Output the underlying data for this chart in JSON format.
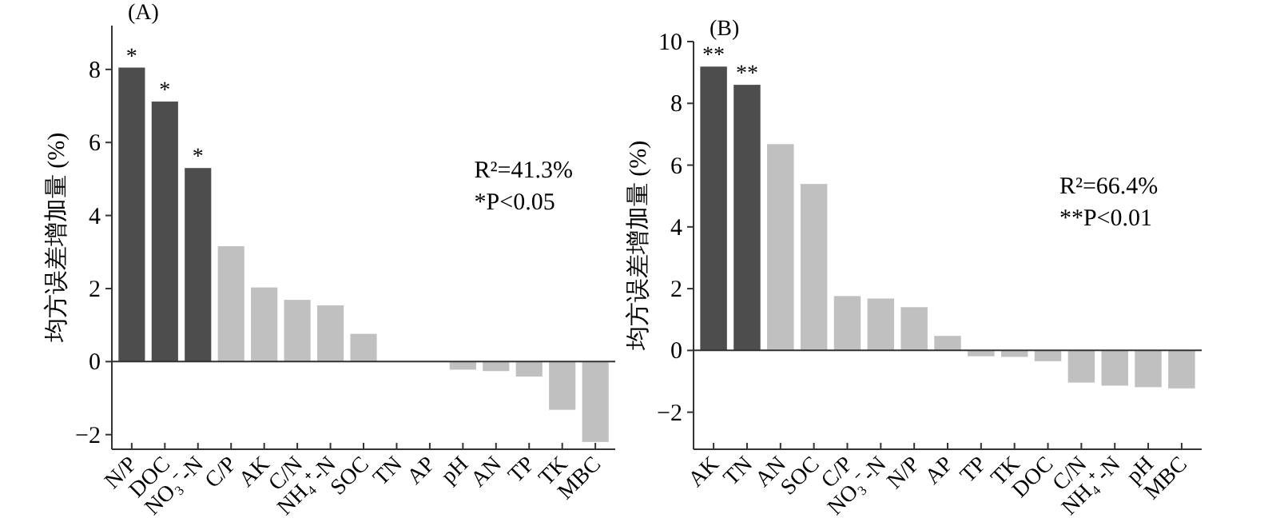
{
  "chart_data": [
    {
      "type": "bar",
      "title": "(A)",
      "ylabel": "均方误差增加量 (%)",
      "categories": [
        "N/P",
        "DOC",
        "NO₃⁻-N",
        "C/P",
        "AK",
        "C/N",
        "NH₄⁺-N",
        "SOC",
        "TN",
        "AP",
        "pH",
        "AN",
        "TP",
        "TK",
        "MBC"
      ],
      "values": [
        8.05,
        7.12,
        5.3,
        3.16,
        2.03,
        1.69,
        1.54,
        0.76,
        0,
        0,
        -0.22,
        -0.26,
        -0.41,
        -1.32,
        -2.2
      ],
      "colors": [
        "#4d4d4d",
        "#4d4d4d",
        "#4d4d4d",
        "#c0c0c0",
        "#c0c0c0",
        "#c0c0c0",
        "#c0c0c0",
        "#c0c0c0",
        "#c0c0c0",
        "#c0c0c0",
        "#c0c0c0",
        "#c0c0c0",
        "#c0c0c0",
        "#c0c0c0",
        "#c0c0c0"
      ],
      "ylim": [
        -2.4,
        9.2
      ],
      "yticks": [
        -2,
        0,
        2,
        4,
        6,
        8
      ],
      "annotations": [
        {
          "text": "*",
          "x": "N/P",
          "y": 8.05
        },
        {
          "text": "*",
          "x": "DOC",
          "y": 7.12
        },
        {
          "text": "*",
          "x": "NO₃⁻-N",
          "y": 5.3
        },
        "R²=41.3%",
        "*P<0.05"
      ]
    },
    {
      "type": "bar",
      "title": "(B)",
      "ylabel": "均方误差增加量 (%)",
      "categories": [
        "AK",
        "TN",
        "AN",
        "SOC",
        "C/P",
        "NO₃⁻-N",
        "N/P",
        "AP",
        "TP",
        "TK",
        "DOC",
        "C/N",
        "NH₄⁺-N",
        "pH",
        "MBC"
      ],
      "values": [
        9.19,
        8.6,
        6.68,
        5.39,
        1.76,
        1.68,
        1.4,
        0.47,
        -0.19,
        -0.21,
        -0.35,
        -1.04,
        -1.14,
        -1.19,
        -1.23
      ],
      "colors": [
        "#4d4d4d",
        "#4d4d4d",
        "#c0c0c0",
        "#c0c0c0",
        "#c0c0c0",
        "#c0c0c0",
        "#c0c0c0",
        "#c0c0c0",
        "#c0c0c0",
        "#c0c0c0",
        "#c0c0c0",
        "#c0c0c0",
        "#c0c0c0",
        "#c0c0c0",
        "#c0c0c0"
      ],
      "ylim": [
        -3.2,
        10
      ],
      "yticks": [
        -2,
        0,
        2,
        4,
        6,
        8,
        10
      ],
      "annotations": [
        {
          "text": "**",
          "x": "AK",
          "y": 9.19
        },
        {
          "text": "**",
          "x": "TN",
          "y": 8.6
        },
        "R²=66.4%",
        "**P<0.01"
      ]
    }
  ]
}
